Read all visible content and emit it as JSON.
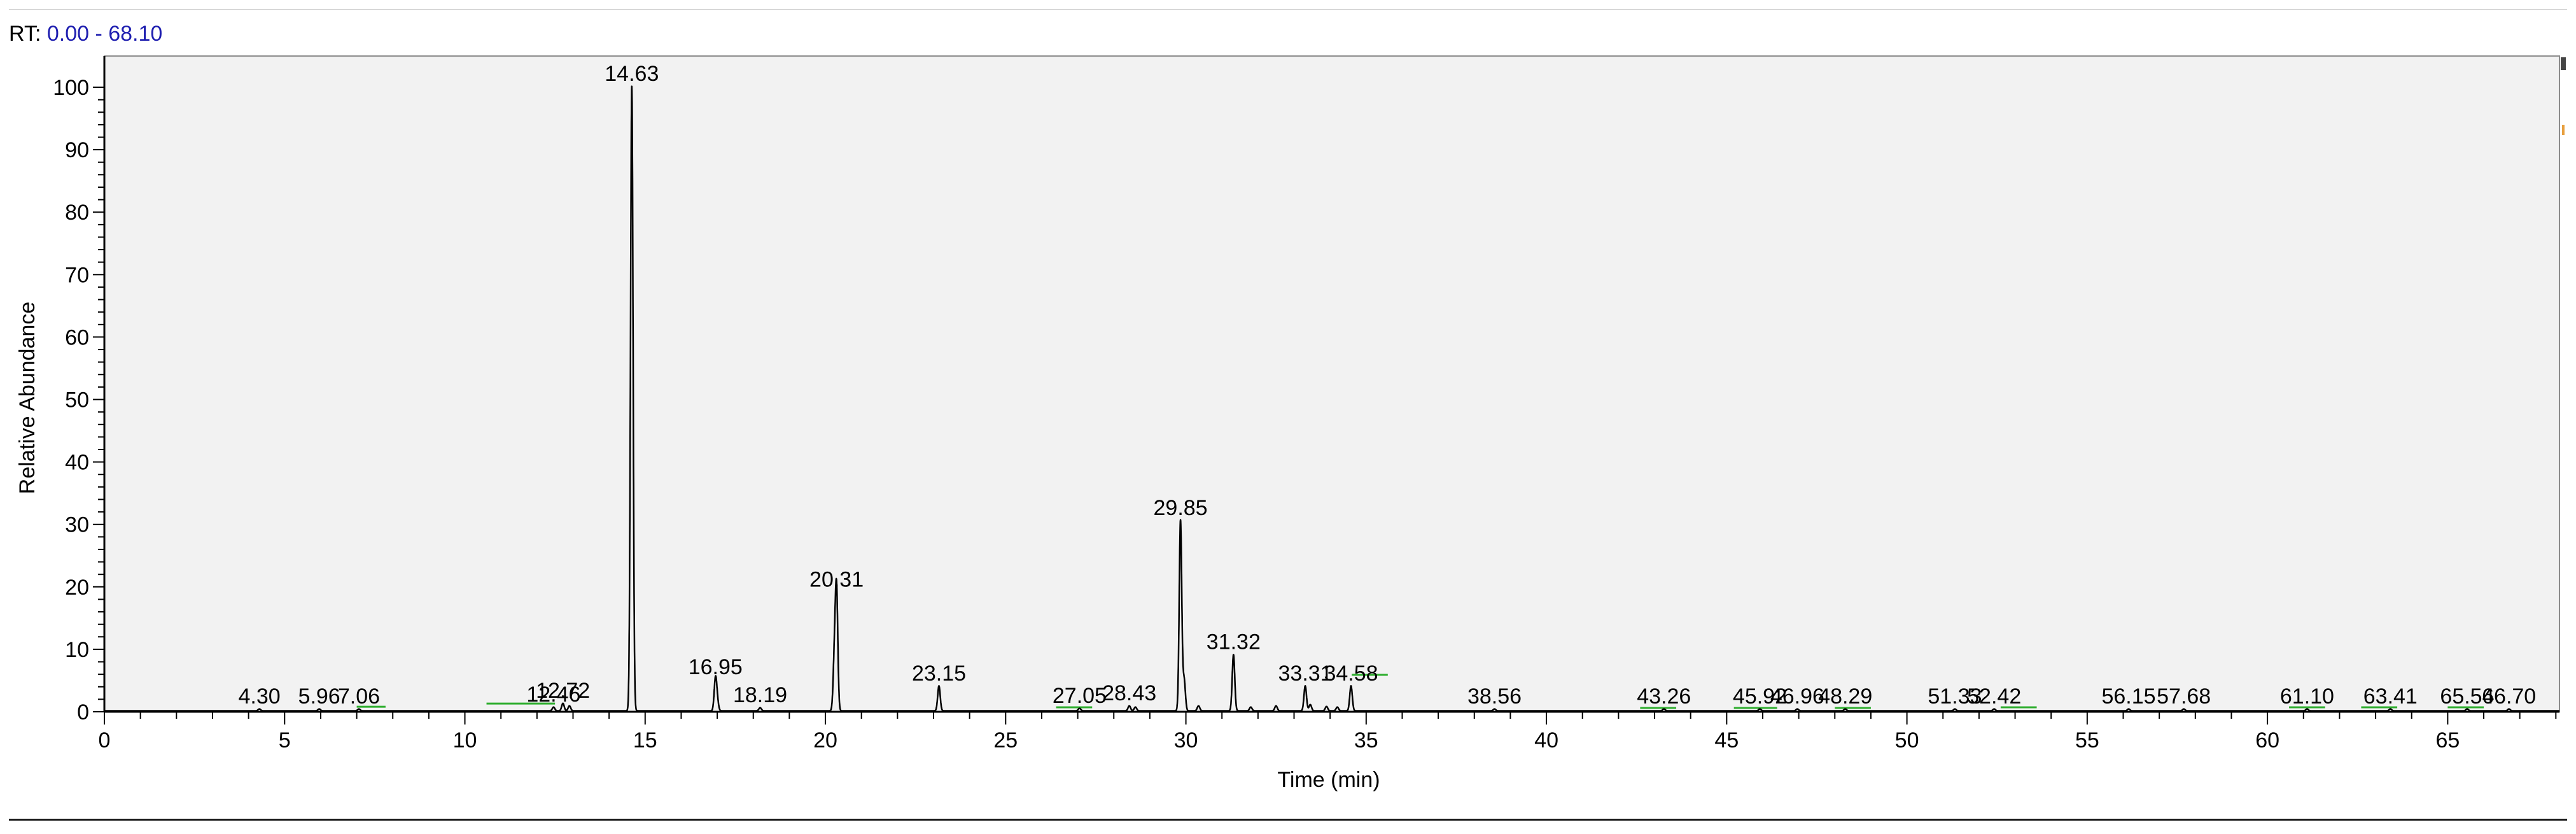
{
  "header": {
    "rt_label": "RT:",
    "rt_range": "0.00 - 68.10"
  },
  "colors": {
    "trace": "#000000",
    "baseline_marker": "#2fae2f",
    "plot_bg": "#f2f2f2",
    "rt_value": "#1f1fb0"
  },
  "chart_data": {
    "type": "line",
    "xlabel": "Time (min)",
    "ylabel": "Relative Abundance",
    "xlim": [
      0,
      68.1
    ],
    "ylim": [
      0,
      105
    ],
    "x_ticks": [
      0,
      5,
      10,
      15,
      20,
      25,
      30,
      35,
      40,
      45,
      50,
      55,
      60,
      65
    ],
    "x_tick_labels": [
      "0",
      "5",
      "10",
      "15",
      "20",
      "25",
      "30",
      "35",
      "40",
      "45",
      "50",
      "55",
      "60",
      "65"
    ],
    "y_ticks": [
      0,
      10,
      20,
      30,
      40,
      50,
      60,
      70,
      80,
      90,
      100
    ],
    "y_tick_labels": [
      "0",
      "10",
      "20",
      "30",
      "40",
      "50",
      "60",
      "70",
      "80",
      "90",
      "100"
    ],
    "grid": false,
    "peaks": [
      {
        "label": "4.30",
        "rt": 4.3,
        "height": 0.3
      },
      {
        "label": "5.96",
        "rt": 5.96,
        "height": 0.3
      },
      {
        "label": "7.06",
        "rt": 7.06,
        "height": 0.3
      },
      {
        "label": "12.46",
        "rt": 12.46,
        "height": 0.6
      },
      {
        "label": "12.72",
        "rt": 12.72,
        "height": 1.2
      },
      {
        "label": "14.63",
        "rt": 14.63,
        "height": 100
      },
      {
        "label": "16.95",
        "rt": 16.95,
        "height": 5
      },
      {
        "label": "18.19",
        "rt": 18.19,
        "height": 0.5
      },
      {
        "label": "20.31",
        "rt": 20.31,
        "height": 19
      },
      {
        "label": "23.15",
        "rt": 23.15,
        "height": 4
      },
      {
        "label": "27.05",
        "rt": 27.05,
        "height": 0.4
      },
      {
        "label": "28.43",
        "rt": 28.43,
        "height": 0.8
      },
      {
        "label": "29.85",
        "rt": 29.85,
        "height": 30.5
      },
      {
        "label": "31.32",
        "rt": 31.32,
        "height": 9
      },
      {
        "label": "33.31",
        "rt": 33.31,
        "height": 4
      },
      {
        "label": "34.58",
        "rt": 34.58,
        "height": 4
      },
      {
        "label": "38.56",
        "rt": 38.56,
        "height": 0.3
      },
      {
        "label": "43.26",
        "rt": 43.26,
        "height": 0.3
      },
      {
        "label": "45.92",
        "rt": 45.92,
        "height": 0.3
      },
      {
        "label": "46.96",
        "rt": 46.96,
        "height": 0.3
      },
      {
        "label": "48.29",
        "rt": 48.29,
        "height": 0.3
      },
      {
        "label": "51.33",
        "rt": 51.33,
        "height": 0.3
      },
      {
        "label": "52.42",
        "rt": 52.42,
        "height": 0.3
      },
      {
        "label": "56.15",
        "rt": 56.15,
        "height": 0.3
      },
      {
        "label": "57.68",
        "rt": 57.68,
        "height": 0.3
      },
      {
        "label": "61.10",
        "rt": 61.1,
        "height": 0.3
      },
      {
        "label": "63.41",
        "rt": 63.41,
        "height": 0.3
      },
      {
        "label": "65.54",
        "rt": 65.54,
        "height": 0.3
      },
      {
        "label": "66.70",
        "rt": 66.7,
        "height": 0.3
      }
    ],
    "minor_peaks": [
      {
        "rt": 12.9,
        "height": 0.8
      },
      {
        "rt": 17.0,
        "height": 1.5
      },
      {
        "rt": 20.25,
        "height": 8
      },
      {
        "rt": 28.6,
        "height": 0.6
      },
      {
        "rt": 29.95,
        "height": 5
      },
      {
        "rt": 30.35,
        "height": 0.8
      },
      {
        "rt": 31.8,
        "height": 0.6
      },
      {
        "rt": 32.5,
        "height": 0.8
      },
      {
        "rt": 33.45,
        "height": 1
      },
      {
        "rt": 33.9,
        "height": 0.7
      },
      {
        "rt": 34.2,
        "height": 0.6
      }
    ],
    "baseline_markers": [
      {
        "from": 7.0,
        "to": 7.8,
        "level": 0.4
      },
      {
        "from": 10.6,
        "to": 12.5,
        "level": 0.9
      },
      {
        "from": 26.4,
        "to": 27.4,
        "level": 0.3
      },
      {
        "from": 34.6,
        "to": 35.6,
        "level": 5.5
      },
      {
        "from": 42.6,
        "to": 43.6,
        "level": 0.2
      },
      {
        "from": 45.2,
        "to": 46.4,
        "level": 0.2
      },
      {
        "from": 48.0,
        "to": 49.0,
        "level": 0.2
      },
      {
        "from": 52.6,
        "to": 53.6,
        "level": 0.3
      },
      {
        "from": 60.6,
        "to": 61.6,
        "level": 0.3
      },
      {
        "from": 62.6,
        "to": 63.6,
        "level": 0.3
      },
      {
        "from": 65.0,
        "to": 66.0,
        "level": 0.3
      }
    ]
  }
}
